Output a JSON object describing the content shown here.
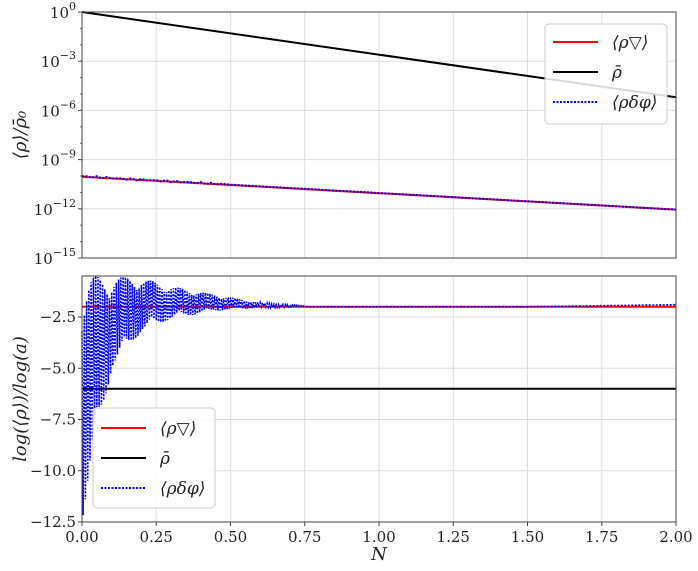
{
  "chart_data": [
    {
      "type": "line",
      "ylabel": "⟨ρ⟩/ρ̄₀",
      "yscale": "log",
      "xlim": [
        0.0,
        2.0
      ],
      "ylim_exponent": [
        -15,
        0
      ],
      "y_ticks": [
        {
          "exp": 0,
          "label": "10",
          "sup": "0"
        },
        {
          "exp": -3,
          "label": "10",
          "sup": "−3"
        },
        {
          "exp": -6,
          "label": "10",
          "sup": "−6"
        },
        {
          "exp": -9,
          "label": "10",
          "sup": "−9"
        },
        {
          "exp": -12,
          "label": "10",
          "sup": "−12"
        },
        {
          "exp": -15,
          "label": "10",
          "sup": "−15"
        }
      ],
      "grid": true,
      "legend_position": "top-right",
      "series": [
        {
          "name": "⟨ρ▽⟩",
          "color": "#ff0000",
          "style": "solid",
          "x": [
            0.0,
            0.25,
            0.5,
            0.75,
            1.0,
            1.25,
            1.5,
            1.75,
            2.0
          ],
          "log10_y": [
            -10.05,
            -10.3,
            -10.55,
            -10.8,
            -11.05,
            -11.3,
            -11.55,
            -11.8,
            -12.05
          ]
        },
        {
          "name": "ρ̄",
          "color": "#000000",
          "style": "solid",
          "x": [
            0.0,
            2.0
          ],
          "log10_y": [
            0.0,
            -5.2
          ]
        },
        {
          "name": "⟨ρδφ⟩",
          "color": "#0000ff",
          "style": "dotted",
          "x": [
            0.0,
            0.25,
            0.5,
            0.75,
            1.0,
            1.25,
            1.5,
            1.75,
            2.0
          ],
          "log10_y": [
            -10.02,
            -10.28,
            -10.55,
            -10.8,
            -11.05,
            -11.3,
            -11.55,
            -11.8,
            -12.05
          ]
        }
      ]
    },
    {
      "type": "line",
      "xlabel": "N",
      "ylabel": "log(⟨ρ⟩)/log(a)",
      "xlim": [
        0.0,
        2.0
      ],
      "ylim": [
        -12.5,
        -0.5
      ],
      "x_ticks": [
        "0.00",
        "0.25",
        "0.50",
        "0.75",
        "1.00",
        "1.25",
        "1.50",
        "1.75",
        "2.00"
      ],
      "y_ticks": [
        "−2.5",
        "−5.0",
        "−7.5",
        "−10.0",
        "−12.5"
      ],
      "grid": true,
      "legend_position": "bottom-left",
      "series": [
        {
          "name": "⟨ρ▽⟩",
          "color": "#ff0000",
          "style": "solid",
          "x": [
            0.0,
            2.0
          ],
          "y": [
            -2.0,
            -2.0
          ]
        },
        {
          "name": "ρ̄",
          "color": "#000000",
          "style": "solid",
          "x": [
            0.0,
            2.0
          ],
          "y": [
            -6.0,
            -6.0
          ]
        },
        {
          "name": "⟨ρδφ⟩",
          "color": "#0000ff",
          "style": "dotted",
          "x": [
            0.0,
            0.05,
            0.1,
            0.15,
            0.2,
            0.3,
            0.4,
            0.45,
            0.5,
            0.75,
            1.0,
            1.25,
            1.5,
            1.75,
            2.0
          ],
          "y": [
            -12.5,
            -4.0,
            -3.2,
            -2.0,
            -1.6,
            -1.5,
            -1.7,
            -1.6,
            -1.8,
            -2.0,
            -2.0,
            -2.0,
            -2.0,
            -1.95,
            -1.9
          ],
          "oscillation_envelope": [
            {
              "x": 0.0,
              "lo": -12.5,
              "hi": -0.5
            },
            {
              "x": 0.05,
              "lo": -8.5,
              "hi": -0.5
            },
            {
              "x": 0.1,
              "lo": -5.0,
              "hi": -0.5
            },
            {
              "x": 0.2,
              "lo": -3.2,
              "hi": -0.6
            },
            {
              "x": 0.3,
              "lo": -2.6,
              "hi": -1.0
            },
            {
              "x": 0.45,
              "lo": -2.2,
              "hi": -1.4
            },
            {
              "x": 0.6,
              "lo": -2.05,
              "hi": -1.8
            },
            {
              "x": 0.75,
              "lo": -2.0,
              "hi": -1.95
            }
          ]
        }
      ]
    }
  ]
}
